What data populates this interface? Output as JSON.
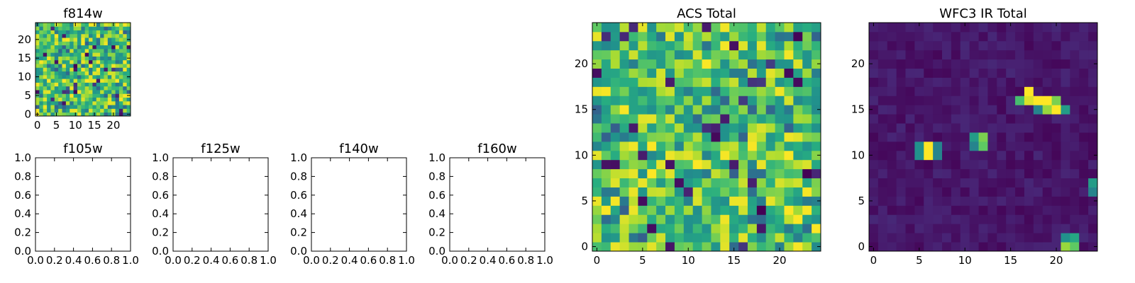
{
  "chart_data": [
    {
      "type": "heatmap",
      "title": "f814w",
      "xlim": [
        -0.5,
        24.5
      ],
      "ylim": [
        -0.5,
        24.5
      ],
      "xticks": [
        0,
        5,
        10,
        15,
        20
      ],
      "yticks": [
        0,
        5,
        10,
        15,
        20
      ],
      "grid_size": [
        25,
        25
      ],
      "colormap": "viridis",
      "value_range": [
        0,
        1
      ],
      "value_note": "pixel values not printed; approximately uniform random noise with mostly mid-to-high intensities"
    },
    {
      "type": "scatter",
      "title": "f105w",
      "xlim": [
        0,
        1
      ],
      "ylim": [
        0,
        1
      ],
      "xticks": [
        "0.0",
        "0.2",
        "0.4",
        "0.6",
        "0.8",
        "1.0"
      ],
      "yticks": [
        "0.0",
        "0.2",
        "0.4",
        "0.6",
        "0.8",
        "1.0"
      ],
      "series": []
    },
    {
      "type": "scatter",
      "title": "f125w",
      "xlim": [
        0,
        1
      ],
      "ylim": [
        0,
        1
      ],
      "xticks": [
        "0.0",
        "0.2",
        "0.4",
        "0.6",
        "0.8",
        "1.0"
      ],
      "yticks": [
        "0.0",
        "0.2",
        "0.4",
        "0.6",
        "0.8",
        "1.0"
      ],
      "series": []
    },
    {
      "type": "scatter",
      "title": "f140w",
      "xlim": [
        0,
        1
      ],
      "ylim": [
        0,
        1
      ],
      "xticks": [
        "0.0",
        "0.2",
        "0.4",
        "0.6",
        "0.8",
        "1.0"
      ],
      "yticks": [
        "0.0",
        "0.2",
        "0.4",
        "0.6",
        "0.8",
        "1.0"
      ],
      "series": []
    },
    {
      "type": "scatter",
      "title": "f160w",
      "xlim": [
        0,
        1
      ],
      "ylim": [
        0,
        1
      ],
      "xticks": [
        "0.0",
        "0.2",
        "0.4",
        "0.6",
        "0.8",
        "1.0"
      ],
      "yticks": [
        "0.0",
        "0.2",
        "0.4",
        "0.6",
        "0.8",
        "1.0"
      ],
      "series": []
    },
    {
      "type": "heatmap",
      "title": "ACS Total",
      "xlim": [
        -0.5,
        24.5
      ],
      "ylim": [
        -0.5,
        24.5
      ],
      "xticks": [
        0,
        5,
        10,
        15,
        20
      ],
      "yticks": [
        0,
        5,
        10,
        15,
        20
      ],
      "grid_size": [
        25,
        25
      ],
      "colormap": "viridis",
      "value_range": [
        0,
        1
      ],
      "value_note": "pixel values not printed; approximately uniform random noise with mostly mid-to-high intensities"
    },
    {
      "type": "heatmap",
      "title": "WFC3 IR Total",
      "xlim": [
        -0.5,
        24.5
      ],
      "ylim": [
        -0.5,
        24.5
      ],
      "xticks": [
        0,
        5,
        10,
        15,
        20
      ],
      "yticks": [
        0,
        5,
        10,
        15,
        20
      ],
      "grid_size": [
        25,
        25
      ],
      "colormap": "viridis",
      "value_range": [
        0,
        1
      ],
      "background_level": 0.08,
      "bright_pixels": [
        {
          "x": 6,
          "y": 10,
          "value": 1.0
        },
        {
          "x": 6,
          "y": 11,
          "value": 1.0
        },
        {
          "x": 5,
          "y": 10,
          "value": 0.5
        },
        {
          "x": 5,
          "y": 11,
          "value": 0.5
        },
        {
          "x": 7,
          "y": 10,
          "value": 0.45
        },
        {
          "x": 7,
          "y": 11,
          "value": 0.45
        },
        {
          "x": 12,
          "y": 11,
          "value": 0.75
        },
        {
          "x": 12,
          "y": 12,
          "value": 0.8
        },
        {
          "x": 11,
          "y": 12,
          "value": 0.55
        },
        {
          "x": 11,
          "y": 11,
          "value": 0.45
        },
        {
          "x": 17,
          "y": 16,
          "value": 0.95
        },
        {
          "x": 17,
          "y": 17,
          "value": 1.0
        },
        {
          "x": 16,
          "y": 16,
          "value": 0.7
        },
        {
          "x": 18,
          "y": 16,
          "value": 1.0
        },
        {
          "x": 19,
          "y": 16,
          "value": 1.0
        },
        {
          "x": 19,
          "y": 15,
          "value": 0.85
        },
        {
          "x": 20,
          "y": 15,
          "value": 1.0
        },
        {
          "x": 20,
          "y": 16,
          "value": 0.8
        },
        {
          "x": 21,
          "y": 15,
          "value": 0.55
        },
        {
          "x": 18,
          "y": 15,
          "value": 0.45
        },
        {
          "x": 21,
          "y": 0,
          "value": 0.85
        },
        {
          "x": 22,
          "y": 0,
          "value": 0.75
        },
        {
          "x": 22,
          "y": 1,
          "value": 0.6
        },
        {
          "x": 21,
          "y": 1,
          "value": 0.5
        },
        {
          "x": 24,
          "y": 7,
          "value": 0.55
        },
        {
          "x": 24,
          "y": 6,
          "value": 0.45
        }
      ]
    }
  ]
}
